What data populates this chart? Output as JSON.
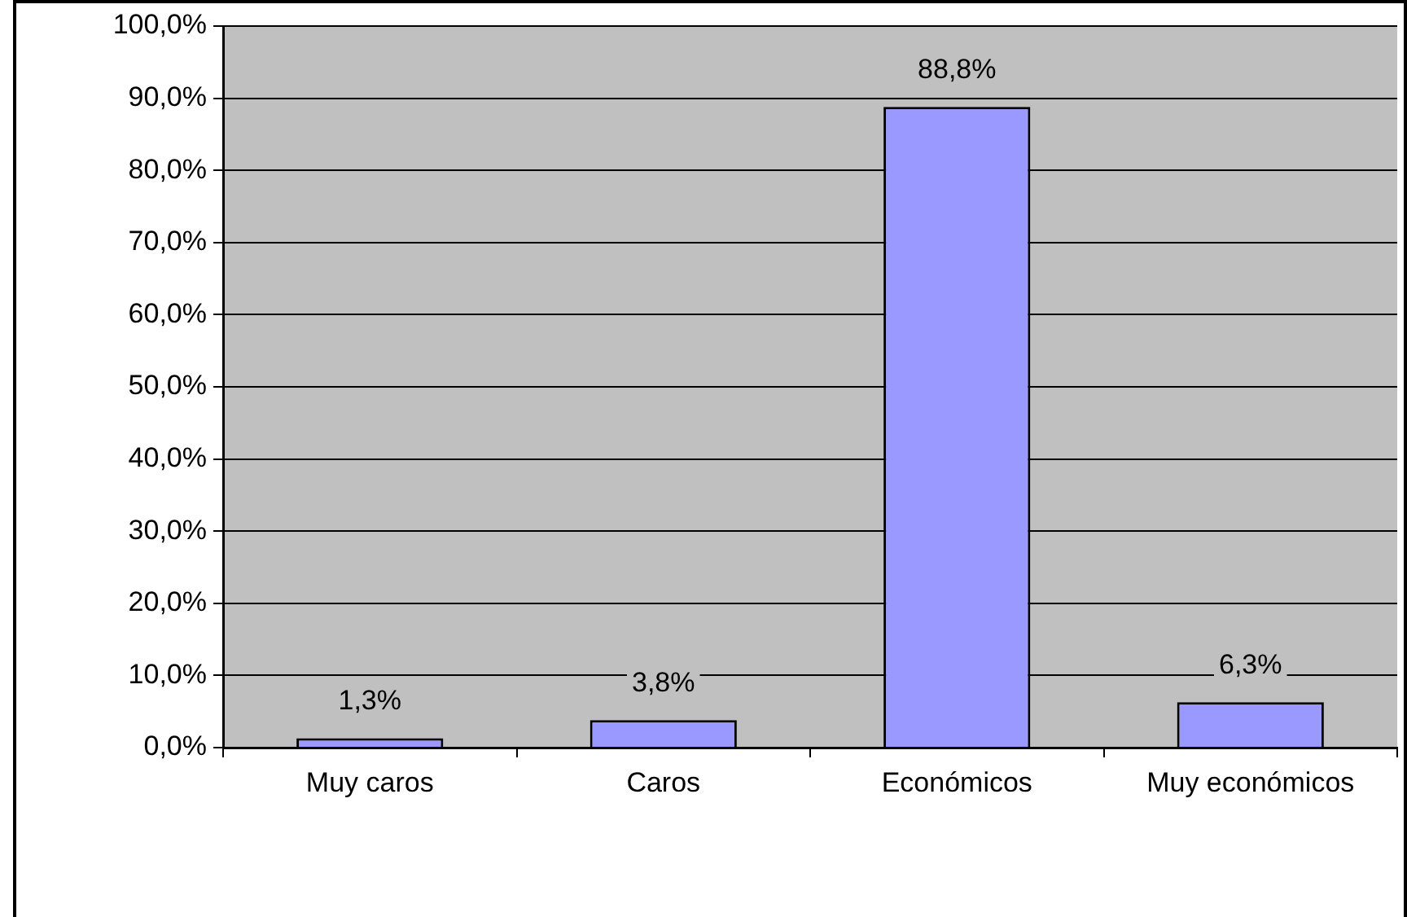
{
  "chart_data": {
    "type": "bar",
    "categories": [
      "Muy caros",
      "Caros",
      "Económicos",
      "Muy económicos"
    ],
    "values": [
      1.3,
      3.8,
      88.8,
      6.3
    ],
    "value_labels": [
      "1,3%",
      "3,8%",
      "88,8%",
      "6,3%"
    ],
    "color": "#9999ff",
    "ylim": [
      0,
      100
    ],
    "yticks": [
      {
        "value": 0,
        "label": "0,0%"
      },
      {
        "value": 10,
        "label": "10,0%"
      },
      {
        "value": 20,
        "label": "20,0%"
      },
      {
        "value": 30,
        "label": "30,0%"
      },
      {
        "value": 40,
        "label": "40,0%"
      },
      {
        "value": 50,
        "label": "50,0%"
      },
      {
        "value": 60,
        "label": "60,0%"
      },
      {
        "value": 70,
        "label": "70,0%"
      },
      {
        "value": 80,
        "label": "80,0%"
      },
      {
        "value": 90,
        "label": "90,0%"
      },
      {
        "value": 100,
        "label": "100,0%"
      }
    ],
    "grid": "y",
    "legend": false
  }
}
